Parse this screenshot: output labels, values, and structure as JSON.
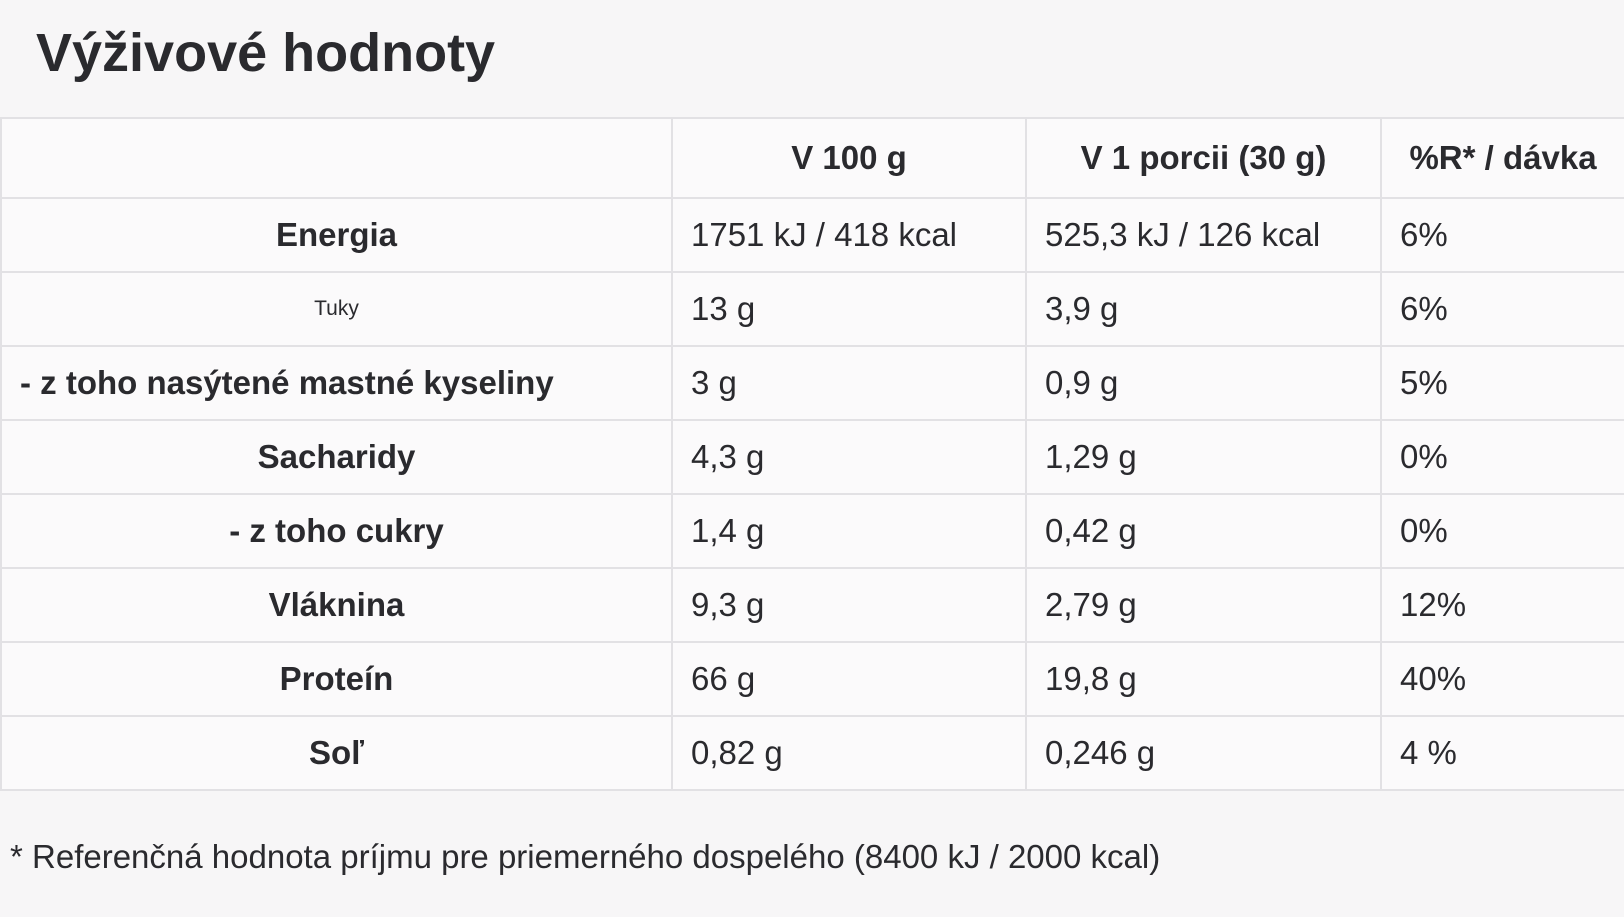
{
  "title": "Výživové hodnoty",
  "table": {
    "header": [
      "V 100 g",
      "V 1 porcii (30 g)",
      "%R* / dávka"
    ],
    "rows": [
      [
        "Energia",
        "1751 kJ / 418 kcal",
        "525,3 kJ / 126 kcal",
        "6%"
      ],
      [
        "Tuky",
        "13 g",
        "3,9 g",
        "6%"
      ],
      [
        "- z toho nasýtené mastné kyseliny",
        "3 g",
        "0,9 g",
        "5%"
      ],
      [
        "Sacharidy",
        "4,3 g",
        "1,29 g",
        "0%"
      ],
      [
        "- z toho cukry",
        "1,4 g",
        "0,42 g",
        "0%"
      ],
      [
        "Vláknina",
        "9,3 g",
        "2,79 g",
        "12%"
      ],
      [
        "Proteín",
        "66 g",
        "19,8 g",
        "40%"
      ],
      [
        "Soľ",
        "0,82 g",
        "0,246 g",
        "4 %"
      ]
    ]
  },
  "footnote": "* Referenčná hodnota príjmu pre priemerného dospelého (8400 kJ / 2000 kcal)"
}
